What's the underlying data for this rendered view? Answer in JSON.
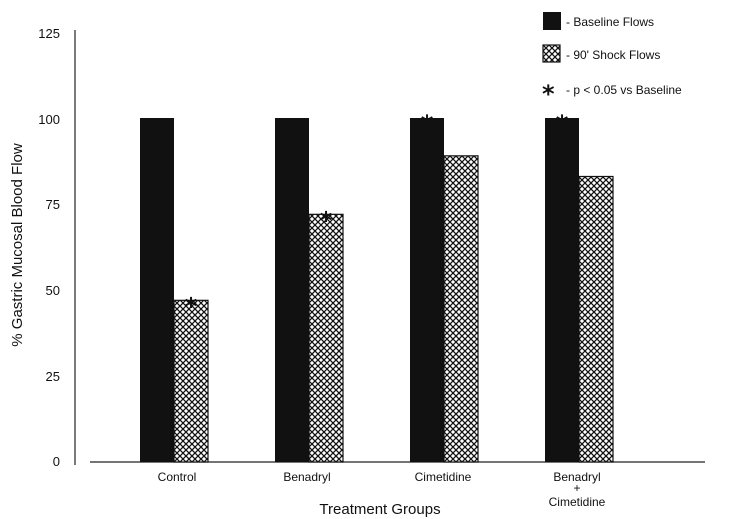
{
  "chart_data": {
    "type": "bar",
    "xlabel": "Treatment Groups",
    "ylabel": "% Gastric Mucosal Blood Flow",
    "ylim": [
      0,
      125
    ],
    "yticks": [
      "0",
      "25",
      "50",
      "75",
      "100",
      "125"
    ],
    "categories": [
      {
        "line1": "Control",
        "line2": "",
        "line3": ""
      },
      {
        "line1": "Benadryl",
        "line2": "",
        "line3": ""
      },
      {
        "line1": "Cimetidine",
        "line2": "",
        "line3": ""
      },
      {
        "line1": "Benadryl",
        "line2": "+",
        "line3": "Cimetidine"
      }
    ],
    "series": [
      {
        "name": "Baseline Flows",
        "fill": "solid",
        "values": [
          100,
          100,
          100,
          100
        ]
      },
      {
        "name": "90' Shock Flows",
        "fill": "crosshatch",
        "values": [
          47,
          72,
          89,
          83
        ]
      }
    ],
    "significance": {
      "symbol": "*",
      "label": "p < 0.05 vs Baseline",
      "marks": [
        [
          1,
          0
        ],
        [
          1,
          1
        ],
        [
          0,
          2
        ],
        [
          0,
          3
        ]
      ]
    },
    "legend": {
      "placement": "top-right",
      "items": [
        "- Baseline Flows",
        "- 90' Shock Flows",
        "- p < 0.05 vs Baseline"
      ]
    },
    "grid": false,
    "colors": {
      "bar": "#111111",
      "axis": "#222222"
    }
  }
}
